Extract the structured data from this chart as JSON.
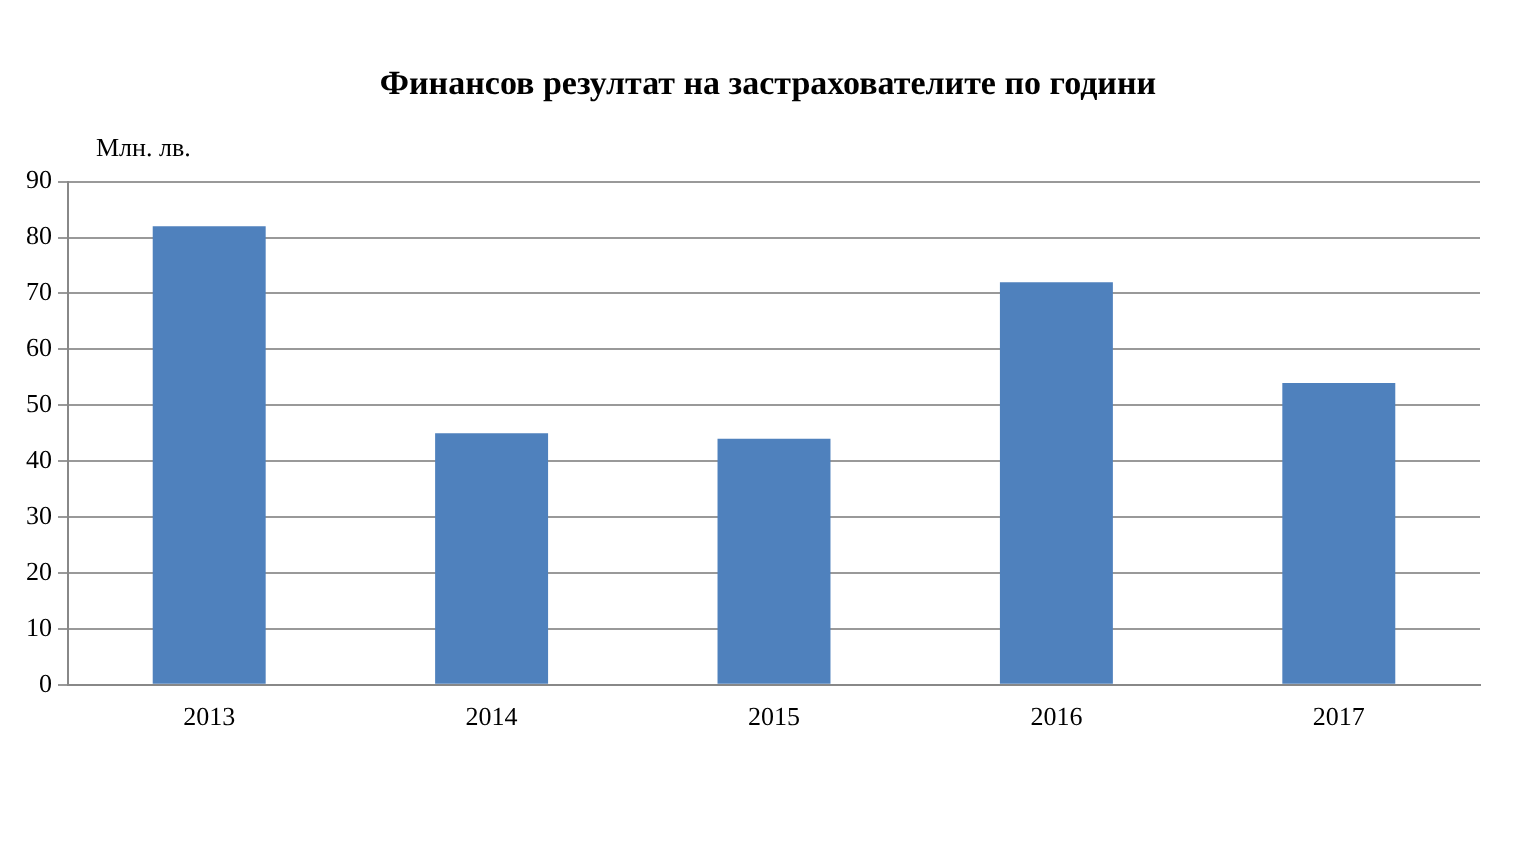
{
  "chart_data": {
    "type": "bar",
    "title": "Финансов резултат на застрахователите по години",
    "ylabel": "Млн. лв.",
    "categories": [
      "2013",
      "2014",
      "2015",
      "2016",
      "2017"
    ],
    "values": [
      82,
      45,
      44,
      72,
      54
    ],
    "color": "#4f81bd",
    "ylim": [
      0,
      90
    ],
    "yticks": [
      0,
      10,
      20,
      30,
      40,
      50,
      60,
      70,
      80,
      90
    ],
    "grid": "y",
    "legend": false
  }
}
